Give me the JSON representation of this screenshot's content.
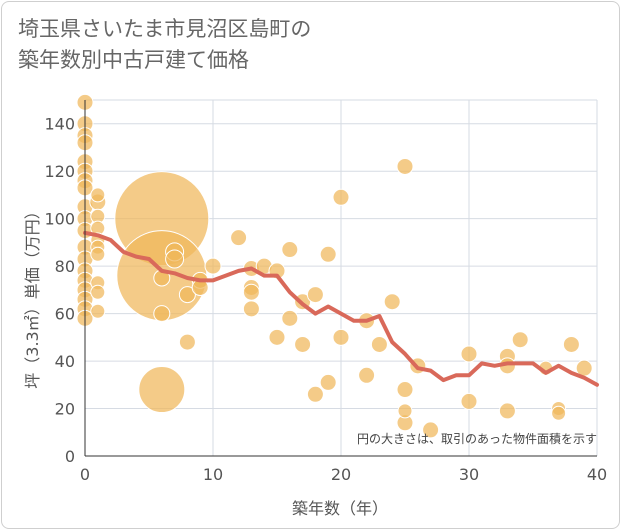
{
  "title_line1": "埼玉県さいたま市見沼区島町の",
  "title_line2": "築年数別中古戸建て価格",
  "colors": {
    "bubble": "#f0b75a",
    "bubble_stroke": "#ffffff",
    "line": "#d9695a",
    "grid": "#d6dbe3",
    "axis": "#333333"
  },
  "chart_data": {
    "type": "scatter",
    "xlabel": "築年数（年）",
    "ylabel": "坪（3.3㎡）単価（万円）",
    "xlim": [
      0,
      40
    ],
    "ylim": [
      0,
      150
    ],
    "x_ticks": [
      0,
      10,
      20,
      30,
      40
    ],
    "y_ticks": [
      0,
      20,
      40,
      60,
      80,
      100,
      120,
      140
    ],
    "grid": true,
    "note": "円の大きさは、取引のあった物件面積を示す",
    "series": [
      {
        "type": "bubble",
        "points": [
          {
            "x": 0,
            "y": 149,
            "r": 8
          },
          {
            "x": 0,
            "y": 140,
            "r": 8
          },
          {
            "x": 0,
            "y": 135,
            "r": 8
          },
          {
            "x": 0,
            "y": 132,
            "r": 8
          },
          {
            "x": 0,
            "y": 124,
            "r": 8
          },
          {
            "x": 0,
            "y": 120,
            "r": 8
          },
          {
            "x": 0,
            "y": 116,
            "r": 8
          },
          {
            "x": 0,
            "y": 113,
            "r": 8
          },
          {
            "x": 0,
            "y": 105,
            "r": 8
          },
          {
            "x": 0,
            "y": 100,
            "r": 8
          },
          {
            "x": 0,
            "y": 95,
            "r": 8
          },
          {
            "x": 0,
            "y": 88,
            "r": 8
          },
          {
            "x": 0,
            "y": 83,
            "r": 8
          },
          {
            "x": 0,
            "y": 78,
            "r": 8
          },
          {
            "x": 0,
            "y": 74,
            "r": 8
          },
          {
            "x": 0,
            "y": 70,
            "r": 8
          },
          {
            "x": 0,
            "y": 66,
            "r": 8
          },
          {
            "x": 0,
            "y": 62,
            "r": 8
          },
          {
            "x": 0,
            "y": 58,
            "r": 8
          },
          {
            "x": 1,
            "y": 110,
            "r": 7
          },
          {
            "x": 1,
            "y": 107,
            "r": 8
          },
          {
            "x": 1,
            "y": 101,
            "r": 7
          },
          {
            "x": 1,
            "y": 96,
            "r": 7
          },
          {
            "x": 1,
            "y": 91,
            "r": 7
          },
          {
            "x": 1,
            "y": 88,
            "r": 7
          },
          {
            "x": 1,
            "y": 85,
            "r": 7
          },
          {
            "x": 1,
            "y": 73,
            "r": 7
          },
          {
            "x": 1,
            "y": 69,
            "r": 7
          },
          {
            "x": 1,
            "y": 61,
            "r": 7
          },
          {
            "x": 6,
            "y": 100,
            "r": 47
          },
          {
            "x": 6,
            "y": 76,
            "r": 45
          },
          {
            "x": 6,
            "y": 75,
            "r": 8
          },
          {
            "x": 6,
            "y": 60,
            "r": 8
          },
          {
            "x": 6,
            "y": 28,
            "r": 23
          },
          {
            "x": 7,
            "y": 86,
            "r": 9
          },
          {
            "x": 7,
            "y": 83,
            "r": 9
          },
          {
            "x": 8,
            "y": 68,
            "r": 8
          },
          {
            "x": 8,
            "y": 48,
            "r": 8
          },
          {
            "x": 9,
            "y": 74,
            "r": 8
          },
          {
            "x": 9,
            "y": 71,
            "r": 8
          },
          {
            "x": 10,
            "y": 80,
            "r": 8
          },
          {
            "x": 12,
            "y": 92,
            "r": 8
          },
          {
            "x": 13,
            "y": 79,
            "r": 8
          },
          {
            "x": 13,
            "y": 71,
            "r": 8
          },
          {
            "x": 13,
            "y": 69,
            "r": 8
          },
          {
            "x": 13,
            "y": 62,
            "r": 8
          },
          {
            "x": 14,
            "y": 80,
            "r": 8
          },
          {
            "x": 15,
            "y": 78,
            "r": 8
          },
          {
            "x": 15,
            "y": 50,
            "r": 8
          },
          {
            "x": 16,
            "y": 87,
            "r": 8
          },
          {
            "x": 16,
            "y": 58,
            "r": 8
          },
          {
            "x": 17,
            "y": 65,
            "r": 8
          },
          {
            "x": 17,
            "y": 47,
            "r": 8
          },
          {
            "x": 18,
            "y": 68,
            "r": 8
          },
          {
            "x": 18,
            "y": 26,
            "r": 8
          },
          {
            "x": 19,
            "y": 85,
            "r": 8
          },
          {
            "x": 19,
            "y": 31,
            "r": 8
          },
          {
            "x": 20,
            "y": 109,
            "r": 8
          },
          {
            "x": 20,
            "y": 50,
            "r": 8
          },
          {
            "x": 22,
            "y": 57,
            "r": 8
          },
          {
            "x": 22,
            "y": 34,
            "r": 8
          },
          {
            "x": 23,
            "y": 47,
            "r": 8
          },
          {
            "x": 24,
            "y": 65,
            "r": 8
          },
          {
            "x": 25,
            "y": 122,
            "r": 8
          },
          {
            "x": 25,
            "y": 28,
            "r": 8
          },
          {
            "x": 25,
            "y": 19,
            "r": 7
          },
          {
            "x": 25,
            "y": 14,
            "r": 8
          },
          {
            "x": 26,
            "y": 38,
            "r": 8
          },
          {
            "x": 27,
            "y": 11,
            "r": 8
          },
          {
            "x": 30,
            "y": 43,
            "r": 8
          },
          {
            "x": 30,
            "y": 23,
            "r": 8
          },
          {
            "x": 33,
            "y": 42,
            "r": 8
          },
          {
            "x": 33,
            "y": 38,
            "r": 8
          },
          {
            "x": 33,
            "y": 19,
            "r": 8
          },
          {
            "x": 34,
            "y": 49,
            "r": 8
          },
          {
            "x": 36,
            "y": 37,
            "r": 7
          },
          {
            "x": 37,
            "y": 20,
            "r": 7
          },
          {
            "x": 37,
            "y": 18,
            "r": 7
          },
          {
            "x": 38,
            "y": 47,
            "r": 8
          },
          {
            "x": 39,
            "y": 37,
            "r": 8
          }
        ]
      },
      {
        "type": "line",
        "x": [
          0,
          1,
          2,
          3,
          4,
          5,
          6,
          7,
          8,
          9,
          10,
          11,
          12,
          13,
          14,
          15,
          16,
          17,
          18,
          19,
          20,
          21,
          22,
          23,
          24,
          25,
          26,
          27,
          28,
          29,
          30,
          31,
          32,
          33,
          34,
          35,
          36,
          37,
          38,
          39,
          40
        ],
        "y": [
          94,
          93,
          91,
          86,
          84,
          83,
          78,
          77,
          75,
          74,
          74,
          76,
          78,
          79,
          76,
          76,
          69,
          64,
          60,
          63,
          60,
          57,
          57,
          59,
          48,
          43,
          37,
          36,
          32,
          34,
          34,
          39,
          38,
          39,
          39,
          39,
          35,
          38,
          35,
          33,
          30
        ]
      }
    ]
  }
}
